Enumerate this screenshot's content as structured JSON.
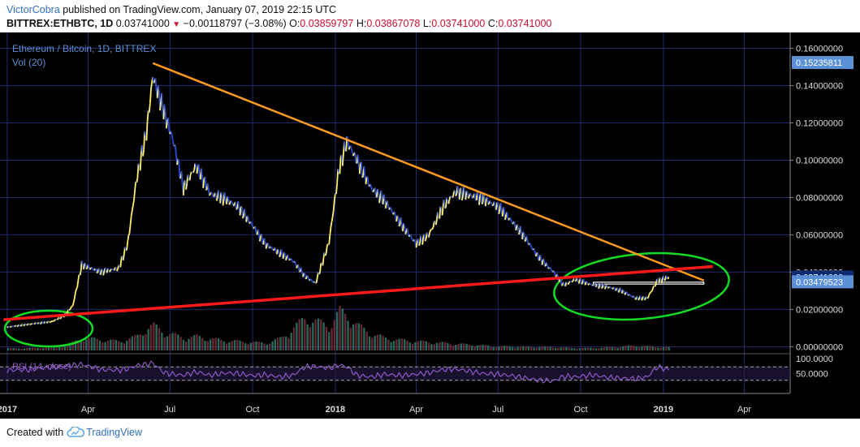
{
  "header": {
    "author": "VictorCobra",
    "published_text": "published on TradingView.com, January 07, 2019 22:15 UTC",
    "symbol": "BITTREX:ETHBTC, 1D",
    "last_price": "0.03741000",
    "change": "−0.00118797 (−3.08%)",
    "open_label": "O:",
    "open": "0.03859797",
    "high_label": "H:",
    "high": "0.03867078",
    "low_label": "L:",
    "low": "0.03741000",
    "close_label": "C:",
    "close": "0.03741000"
  },
  "legend": {
    "title": "Ethereum / Bitcoin, 1D, BITTREX",
    "volume": "Vol (20)",
    "rsi": "RSI (14, close)"
  },
  "price_axis": {
    "ticks": [
      "0.16000000",
      "0.14000000",
      "0.12000000",
      "0.10000000",
      "0.08000000",
      "0.06000000",
      "0.04000000",
      "0.02000000",
      "0.00000000"
    ],
    "badges": [
      {
        "value": 0.15235811,
        "label": "0.15235811",
        "bg": "#5b8fd6"
      },
      {
        "value": 0.03741,
        "label": "0.03741000",
        "bg": "#0f2a72"
      },
      {
        "value": 0.03479523,
        "label": "0.03479523",
        "bg": "#5b8fd6"
      }
    ]
  },
  "rsi_axis": {
    "top_label": "100.0000",
    "mid_label": "50.0000"
  },
  "time_axis": {
    "labels": [
      "2017",
      "Apr",
      "Jul",
      "Oct",
      "2018",
      "Apr",
      "Jul",
      "Oct",
      "2019",
      "Apr"
    ],
    "bold": [
      "2017",
      "2018",
      "2019"
    ]
  },
  "colors": {
    "background": "#000000",
    "grid": "#1f2a6a",
    "up": "#fff06a",
    "down": "#2b4cd6",
    "trend_resistance": "#ff9a22",
    "trend_support": "#ff1a1a",
    "annotation": "#11dd22",
    "rsi": "#8c5ac8"
  },
  "chart_data": {
    "type": "line",
    "title": "Ethereum / Bitcoin, 1D, BITTREX",
    "ylim": [
      0,
      0.165
    ],
    "x": [
      "2017-01-01",
      "2017-01-25",
      "2017-02-20",
      "2017-03-05",
      "2017-03-15",
      "2017-03-25",
      "2017-04-15",
      "2017-05-05",
      "2017-05-15",
      "2017-05-25",
      "2017-06-05",
      "2017-06-12",
      "2017-06-25",
      "2017-07-05",
      "2017-07-16",
      "2017-07-30",
      "2017-08-15",
      "2017-09-01",
      "2017-09-15",
      "2017-10-01",
      "2017-10-15",
      "2017-11-01",
      "2017-11-15",
      "2017-11-28",
      "2017-12-10",
      "2017-12-25",
      "2018-01-05",
      "2018-01-14",
      "2018-01-25",
      "2018-02-10",
      "2018-02-25",
      "2018-03-15",
      "2018-04-01",
      "2018-04-15",
      "2018-05-01",
      "2018-05-15",
      "2018-06-01",
      "2018-06-15",
      "2018-07-01",
      "2018-07-15",
      "2018-08-01",
      "2018-08-15",
      "2018-09-01",
      "2018-09-12",
      "2018-09-25",
      "2018-10-15",
      "2018-11-01",
      "2018-11-15",
      "2018-12-01",
      "2018-12-14",
      "2018-12-25",
      "2019-01-07"
    ],
    "series": [
      {
        "values": [
          0.0105,
          0.012,
          0.0135,
          0.0165,
          0.022,
          0.044,
          0.04,
          0.042,
          0.055,
          0.09,
          0.115,
          0.145,
          0.125,
          0.11,
          0.085,
          0.097,
          0.082,
          0.079,
          0.075,
          0.065,
          0.055,
          0.05,
          0.046,
          0.038,
          0.034,
          0.056,
          0.095,
          0.11,
          0.1,
          0.085,
          0.078,
          0.066,
          0.055,
          0.06,
          0.075,
          0.083,
          0.081,
          0.079,
          0.075,
          0.068,
          0.058,
          0.048,
          0.04,
          0.033,
          0.036,
          0.033,
          0.032,
          0.03,
          0.026,
          0.026,
          0.035,
          0.0374
        ]
      }
    ],
    "trendlines": [
      {
        "from": [
          "2017-06-12",
          0.152
        ],
        "to": [
          "2019-02-15",
          0.0355
        ]
      },
      {
        "from": [
          "2016-12-28",
          0.0145
        ],
        "to": [
          "2019-02-25",
          0.043
        ]
      }
    ],
    "highlight_range": {
      "from": "2018-10-15",
      "to": "2019-02-15",
      "low": 0.0336,
      "high": 0.0346
    }
  },
  "volume_data": {
    "values": [
      5,
      6,
      8,
      12,
      20,
      30,
      26,
      22,
      28,
      35,
      55,
      60,
      42,
      38,
      30,
      34,
      28,
      24,
      22,
      20,
      18,
      30,
      55,
      80,
      70,
      60,
      95,
      85,
      60,
      40,
      30,
      25,
      22,
      20,
      18,
      16,
      14,
      12,
      10,
      10,
      9,
      9,
      8,
      7,
      6,
      6,
      8,
      10,
      12,
      10,
      9,
      8
    ]
  },
  "rsi_data": {
    "values": [
      60,
      62,
      70,
      72,
      75,
      78,
      62,
      60,
      64,
      74,
      78,
      82,
      52,
      48,
      45,
      55,
      45,
      52,
      50,
      44,
      46,
      40,
      45,
      70,
      72,
      66,
      76,
      70,
      45,
      40,
      48,
      44,
      48,
      52,
      62,
      64,
      56,
      50,
      48,
      44,
      36,
      30,
      28,
      42,
      40,
      46,
      38,
      36,
      34,
      40,
      70,
      62
    ]
  },
  "footer": {
    "created_with": "Created with",
    "brand": "TradingView"
  }
}
